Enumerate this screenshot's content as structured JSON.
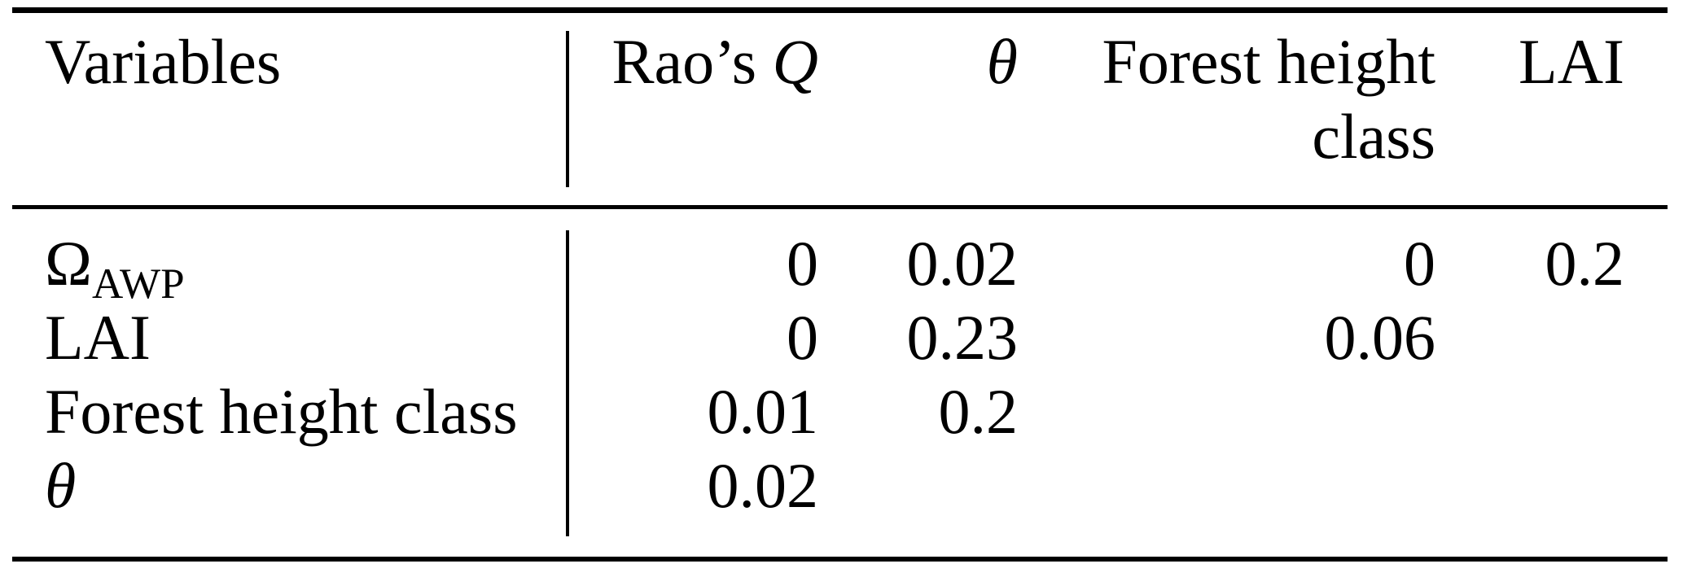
{
  "colors": {
    "background": "#ffffff",
    "text": "#000000",
    "rule": "#000000"
  },
  "table": {
    "header": {
      "variables": "Variables",
      "raos_q_prefix": "Rao’s ",
      "raos_q_symbol": "Q",
      "theta": "θ",
      "forest_height_line1": "Forest height",
      "forest_height_line2": "class",
      "lai": "LAI"
    },
    "rows": [
      {
        "label_main": "Ω",
        "label_sub": "AWP",
        "raos_q": "0",
        "theta": "0.02",
        "forest_height_class": "0",
        "lai": "0.2"
      },
      {
        "label_main": "LAI",
        "label_sub": "",
        "raos_q": "0",
        "theta": "0.23",
        "forest_height_class": "0.06",
        "lai": ""
      },
      {
        "label_main": "Forest height class",
        "label_sub": "",
        "raos_q": "0.01",
        "theta": "0.2",
        "forest_height_class": "",
        "lai": ""
      },
      {
        "label_main": "θ",
        "label_sub": "",
        "raos_q": "0.02",
        "theta": "",
        "forest_height_class": "",
        "lai": ""
      }
    ]
  },
  "chart_data": {
    "type": "table",
    "columns": [
      "Variables",
      "Rao’s Q",
      "θ",
      "Forest height class",
      "LAI"
    ],
    "rows": [
      [
        "Ω_AWP",
        "0",
        "0.02",
        "0",
        "0.2"
      ],
      [
        "LAI",
        "0",
        "0.23",
        "0.06",
        ""
      ],
      [
        "Forest height class",
        "0.01",
        "0.2",
        "",
        ""
      ],
      [
        "θ",
        "0.02",
        "",
        "",
        ""
      ]
    ]
  }
}
